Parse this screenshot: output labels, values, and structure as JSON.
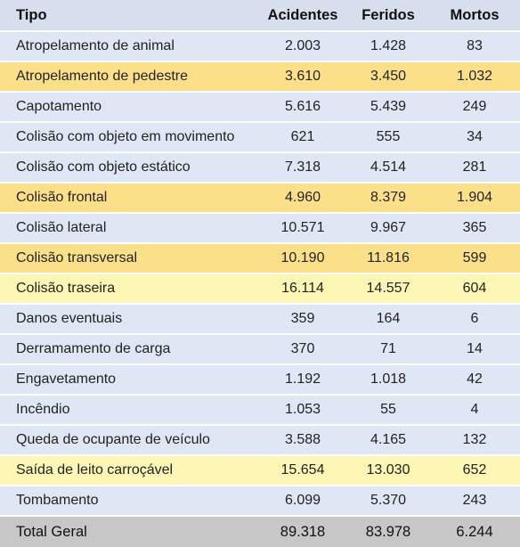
{
  "headers": [
    "Tipo",
    "Acidentes",
    "Feridos",
    "Mortos"
  ],
  "rows": [
    {
      "tipo": "Atropelamento de animal",
      "acidentes": "2.003",
      "feridos": "1.428",
      "mortos": "83",
      "highlight": "none"
    },
    {
      "tipo": "Atropelamento de pedestre",
      "acidentes": "3.610",
      "feridos": "3.450",
      "mortos": "1.032",
      "highlight": "orange"
    },
    {
      "tipo": "Capotamento",
      "acidentes": "5.616",
      "feridos": "5.439",
      "mortos": "249",
      "highlight": "none"
    },
    {
      "tipo": "Colisão com objeto em movimento",
      "acidentes": "621",
      "feridos": "555",
      "mortos": "34",
      "highlight": "none"
    },
    {
      "tipo": "Colisão com objeto estático",
      "acidentes": "7.318",
      "feridos": "4.514",
      "mortos": "281",
      "highlight": "none"
    },
    {
      "tipo": "Colisão frontal",
      "acidentes": "4.960",
      "feridos": "8.379",
      "mortos": "1.904",
      "highlight": "orange"
    },
    {
      "tipo": "Colisão lateral",
      "acidentes": "10.571",
      "feridos": "9.967",
      "mortos": "365",
      "highlight": "none"
    },
    {
      "tipo": "Colisão transversal",
      "acidentes": "10.190",
      "feridos": "11.816",
      "mortos": "599",
      "highlight": "orange"
    },
    {
      "tipo": "Colisão traseira",
      "acidentes": "16.114",
      "feridos": "14.557",
      "mortos": "604",
      "highlight": "yellow"
    },
    {
      "tipo": "Danos eventuais",
      "acidentes": "359",
      "feridos": "164",
      "mortos": "6",
      "highlight": "none"
    },
    {
      "tipo": "Derramamento de carga",
      "acidentes": "370",
      "feridos": "71",
      "mortos": "14",
      "highlight": "none"
    },
    {
      "tipo": "Engavetamento",
      "acidentes": "1.192",
      "feridos": "1.018",
      "mortos": "42",
      "highlight": "none"
    },
    {
      "tipo": "Incêndio",
      "acidentes": "1.053",
      "feridos": "55",
      "mortos": "4",
      "highlight": "none"
    },
    {
      "tipo": "Queda de ocupante de veículo",
      "acidentes": "3.588",
      "feridos": "4.165",
      "mortos": "132",
      "highlight": "none"
    },
    {
      "tipo": "Saída de leito carroçável",
      "acidentes": "15.654",
      "feridos": "13.030",
      "mortos": "652",
      "highlight": "yellow"
    },
    {
      "tipo": "Tombamento",
      "acidentes": "6.099",
      "feridos": "5.370",
      "mortos": "243",
      "highlight": "none"
    }
  ],
  "total": {
    "tipo": "Total Geral",
    "acidentes": "89.318",
    "feridos": "83.978",
    "mortos": "6.244"
  },
  "colors": {
    "header_bg": "#d7deee",
    "row_bg": "#dfe6f4",
    "highlight_orange": "#fce089",
    "highlight_yellow": "#fdf6b4",
    "total_bg": "#c7c7c7"
  }
}
